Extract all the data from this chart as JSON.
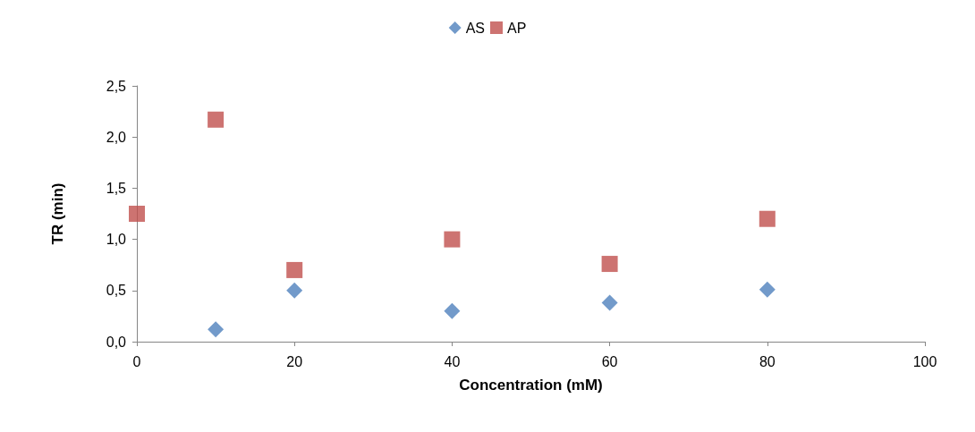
{
  "chart_data": {
    "type": "scatter",
    "xlabel": "Concentration (mM)",
    "ylabel": "TR (min)",
    "legend": "top",
    "grid": false,
    "xlim": [
      0,
      100
    ],
    "xticks": [
      0,
      20,
      40,
      60,
      80,
      100
    ],
    "ylim": [
      0,
      2.5
    ],
    "yticks": [
      {
        "value": 0,
        "label": "0,0"
      },
      {
        "value": 0.5,
        "label": "0,5"
      },
      {
        "value": 1,
        "label": "1,0"
      },
      {
        "value": 1.5,
        "label": "1,5"
      },
      {
        "value": 2,
        "label": "2,0"
      },
      {
        "value": 2.5,
        "label": "2,5"
      }
    ],
    "series": [
      {
        "name": "AS",
        "color": "#4f81bd",
        "marker": "diamond",
        "x": [
          10,
          20,
          40,
          60,
          80
        ],
        "values": [
          0.12,
          0.5,
          0.3,
          0.38,
          0.51
        ]
      },
      {
        "name": "AP",
        "color": "#c0504d",
        "marker": "square",
        "x": [
          0,
          10,
          20,
          40,
          60,
          80
        ],
        "values": [
          1.25,
          2.17,
          0.7,
          1.0,
          0.76,
          1.2
        ]
      }
    ]
  }
}
